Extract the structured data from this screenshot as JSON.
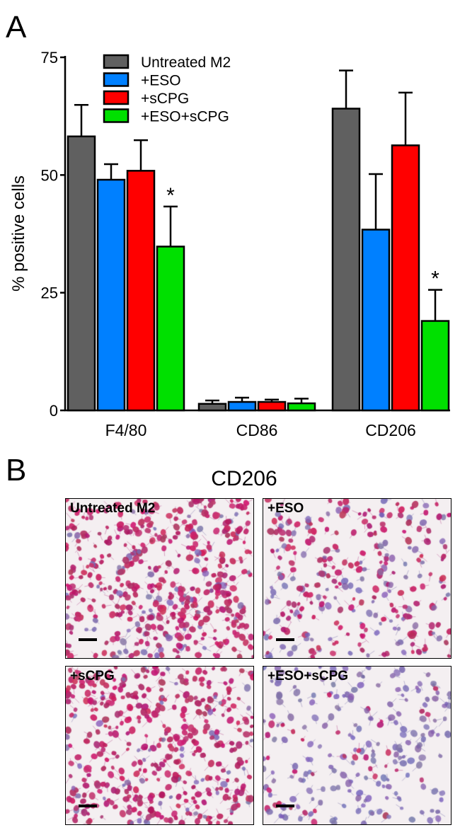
{
  "panel_a_label": "A",
  "panel_b_label": "B",
  "panel_b_title": "CD206",
  "chart_data": {
    "type": "bar",
    "title": "",
    "xlabel": "",
    "ylabel": "% positive cells",
    "ylim": [
      0,
      75
    ],
    "yticks": [
      "0",
      "25",
      "50",
      "75"
    ],
    "categories": [
      "F4/80",
      "CD86",
      "CD206"
    ],
    "legend_position": "top-left",
    "series": [
      {
        "name": "Untreated M2",
        "color": "#606060",
        "values": [
          58.2,
          1.4,
          64.1
        ],
        "errors": [
          6.7,
          0.7,
          8.1
        ]
      },
      {
        "name": "+ESO",
        "color": "#0080ff",
        "values": [
          49.0,
          1.8,
          38.4
        ],
        "errors": [
          3.3,
          0.9,
          11.8
        ]
      },
      {
        "name": "+sCPG",
        "color": "#ff0000",
        "values": [
          50.9,
          1.8,
          56.3
        ],
        "errors": [
          6.5,
          0.5,
          11.2
        ]
      },
      {
        "name": "+ESO+sCPG",
        "color": "#00e000",
        "values": [
          34.8,
          1.5,
          19.0
        ],
        "errors": [
          8.5,
          1.0,
          6.6
        ]
      }
    ],
    "annotations": [
      {
        "text": "*",
        "category": "F4/80",
        "series": "+ESO+sCPG"
      },
      {
        "text": "*",
        "category": "CD206",
        "series": "+ESO+sCPG"
      }
    ]
  },
  "micrographs": [
    {
      "label": "Untreated M2",
      "density": 0.9,
      "stain": 0.85
    },
    {
      "label": "+ESO",
      "density": 0.55,
      "stain": 0.6
    },
    {
      "label": "+sCPG",
      "density": 0.85,
      "stain": 0.9
    },
    {
      "label": "+ESO+sCPG",
      "density": 0.45,
      "stain": 0.15
    }
  ]
}
